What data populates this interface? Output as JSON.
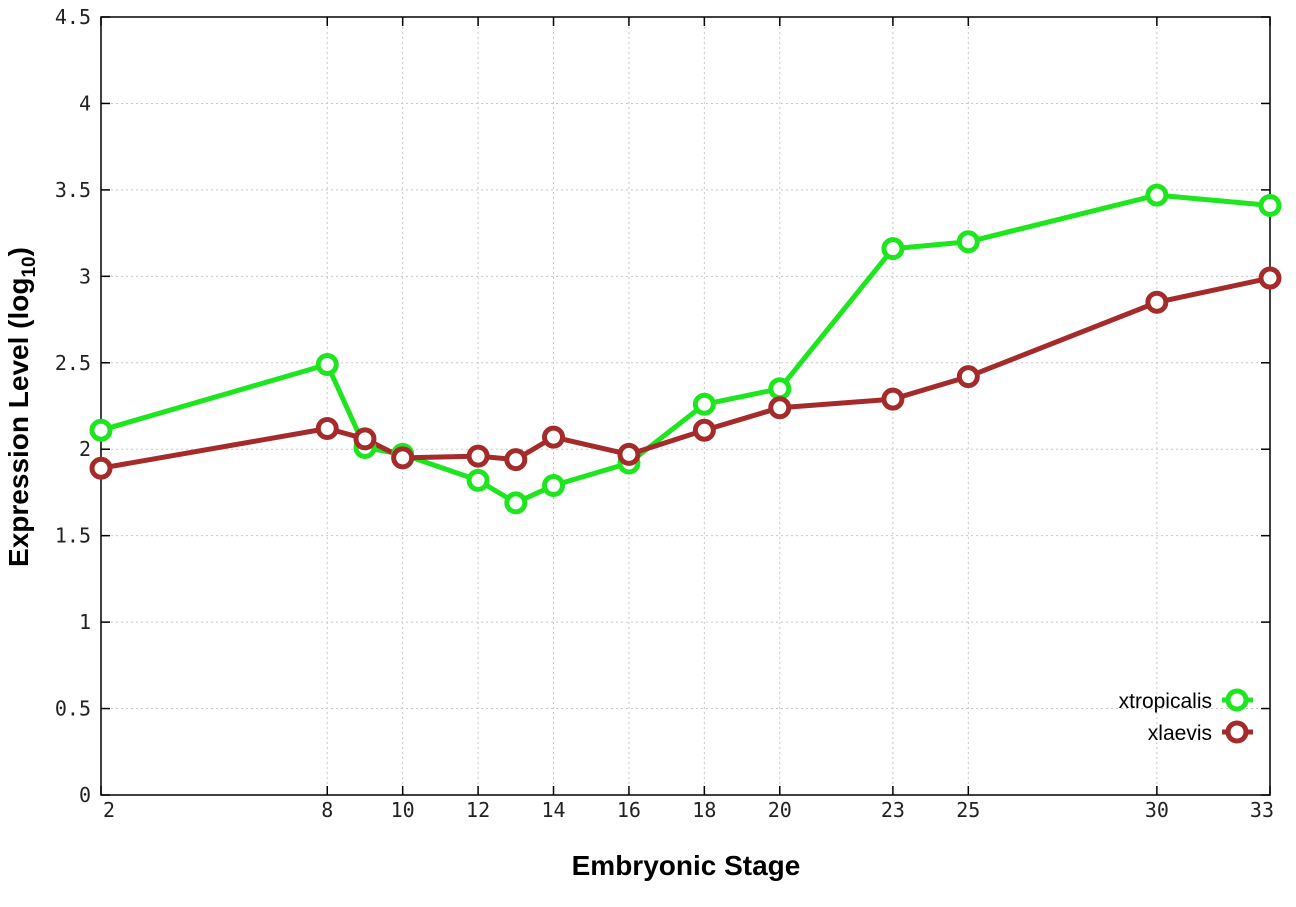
{
  "chart_data": {
    "type": "line",
    "xlabel": "Embryonic Stage",
    "ylabel_main": "Expression Level (log",
    "ylabel_sub": "10",
    "ylabel_close": ")",
    "ylim": [
      0,
      4.5
    ],
    "xlim": [
      2,
      33
    ],
    "x_ticks": [
      2,
      8,
      10,
      12,
      14,
      16,
      18,
      20,
      23,
      25,
      30,
      33
    ],
    "x_tick_labels": [
      "2",
      "8",
      "10",
      "12",
      "14",
      "16",
      "18",
      "20",
      "23",
      "25",
      "30",
      "33"
    ],
    "y_ticks": [
      0,
      0.5,
      1,
      1.5,
      2,
      2.5,
      3,
      3.5,
      4,
      4.5
    ],
    "y_tick_labels": [
      "0",
      "0.5",
      "1",
      "1.5",
      "2",
      "2.5",
      "3",
      "3.5",
      "4",
      "4.5"
    ],
    "grid": true,
    "legend_position": "bottom-right",
    "x": [
      2,
      8,
      9,
      10,
      12,
      13,
      14,
      16,
      18,
      20,
      23,
      25,
      30,
      33
    ],
    "series": [
      {
        "name": "xtropicalis",
        "color": "#1ee61e",
        "values": [
          2.11,
          2.49,
          2.01,
          1.97,
          1.82,
          1.69,
          1.79,
          1.92,
          2.26,
          2.35,
          3.16,
          3.2,
          3.47,
          3.41
        ]
      },
      {
        "name": "xlaevis",
        "color": "#a52a2a",
        "values": [
          1.89,
          2.12,
          2.06,
          1.95,
          1.96,
          1.94,
          2.07,
          1.97,
          2.11,
          2.24,
          2.29,
          2.42,
          2.85,
          2.99
        ]
      }
    ]
  }
}
